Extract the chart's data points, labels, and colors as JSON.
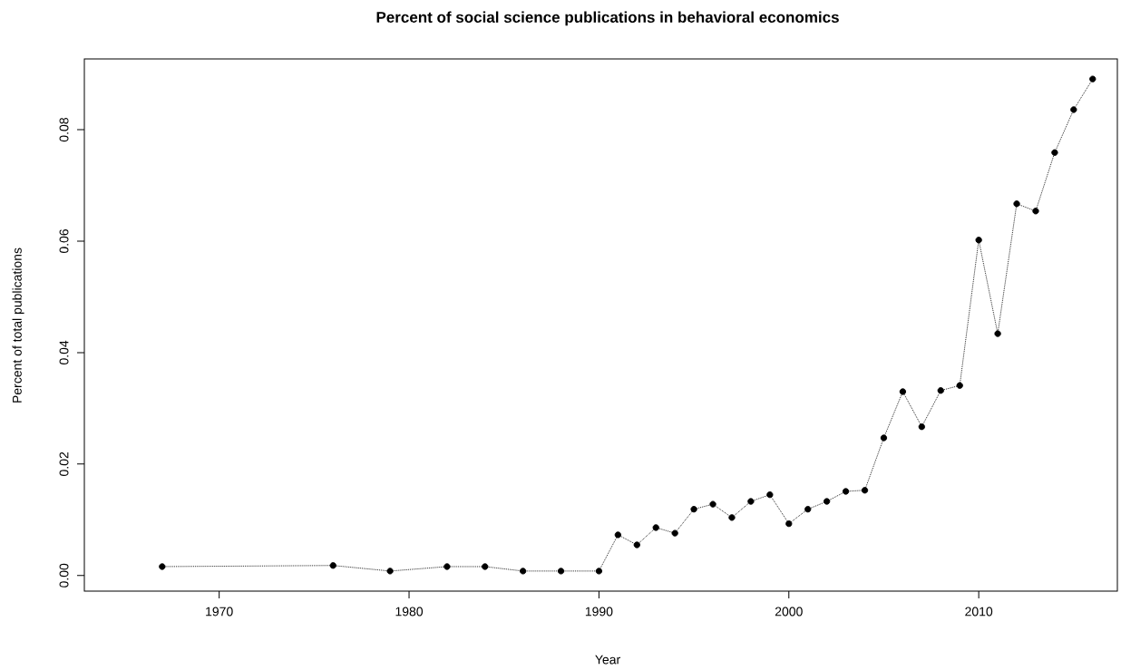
{
  "chart_data": {
    "type": "line",
    "title": "Percent of social science publications in behavioral economics",
    "xlabel": "Year",
    "ylabel": "Percent of total publications",
    "x": [
      1967,
      1976,
      1979,
      1982,
      1984,
      1986,
      1988,
      1990,
      1991,
      1992,
      1993,
      1994,
      1995,
      1996,
      1997,
      1998,
      1999,
      2000,
      2001,
      2002,
      2003,
      2004,
      2005,
      2006,
      2007,
      2008,
      2009,
      2010,
      2011,
      2012,
      2013,
      2014,
      2015,
      2016
    ],
    "series": [
      {
        "color": "#000000",
        "values": [
          0.0016,
          0.0018,
          0.0008,
          0.0016,
          0.0016,
          0.0008,
          0.0008,
          0.0008,
          0.0073,
          0.0055,
          0.0086,
          0.0076,
          0.0119,
          0.0128,
          0.0104,
          0.0133,
          0.0145,
          0.0093,
          0.0119,
          0.0133,
          0.0151,
          0.0153,
          0.0247,
          0.033,
          0.0267,
          0.0332,
          0.0341,
          0.0602,
          0.0434,
          0.0667,
          0.0654,
          0.0759,
          0.0836,
          0.0891
        ]
      }
    ],
    "xlim": [
      1962.9,
      2017.3
    ],
    "ylim": [
      -0.0028,
      0.0927
    ],
    "xticks": [
      1970,
      1980,
      1990,
      2000,
      2010
    ],
    "yticks": [
      {
        "value": 0,
        "label": "0.00"
      },
      {
        "value": 0.02,
        "label": "0.02"
      },
      {
        "value": 0.04,
        "label": "0.04"
      },
      {
        "value": 0.06,
        "label": "0.06"
      },
      {
        "value": 0.08,
        "label": "0.08"
      }
    ],
    "marker": "circle",
    "line_style": "dotted"
  }
}
